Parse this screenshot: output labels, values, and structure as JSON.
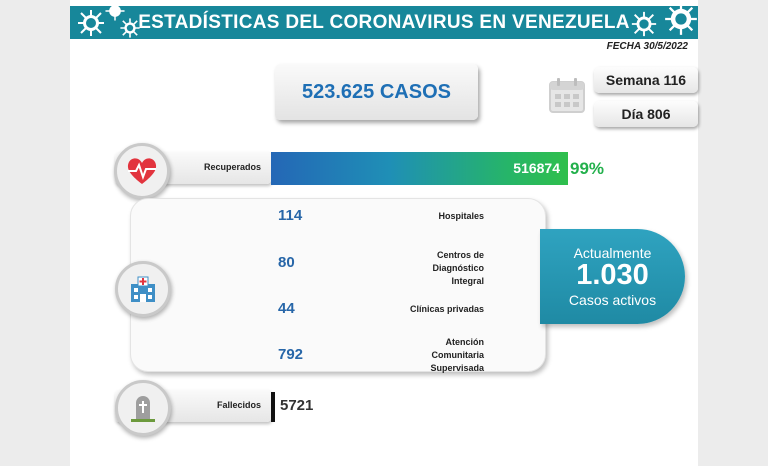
{
  "header": {
    "title": "ESTADÍSTICAS DEL CORONAVIRUS EN VENEZUELA",
    "fecha": "FECHA 30/5/2022",
    "accent": "#17879a"
  },
  "summary": {
    "casos": "523.625 CASOS",
    "semana": "Semana 116",
    "dia": "Día 806"
  },
  "recuperados": {
    "label": "Recuperados",
    "value": "516874",
    "percent": "99%",
    "fraction": 0.99
  },
  "atencion": [
    {
      "label": "Hospitales",
      "value": "114"
    },
    {
      "label": "Centros de Diagnóstico Integral",
      "value": "80"
    },
    {
      "label": "Clínicas privadas",
      "value": "44"
    },
    {
      "label": "Atención Comunitaria Supervisada",
      "value": "792"
    }
  ],
  "activos": {
    "line1": "Actualmente",
    "value": "1.030",
    "line2": "Casos activos"
  },
  "fallecidos": {
    "label": "Fallecidos",
    "value": "5721"
  },
  "icons": {
    "calendar": "calendar-icon",
    "recuperados": "heart-pulse-icon",
    "atencion": "hospital-icon",
    "fallecidos": "tombstone-icon",
    "decor": "virus-icon"
  }
}
